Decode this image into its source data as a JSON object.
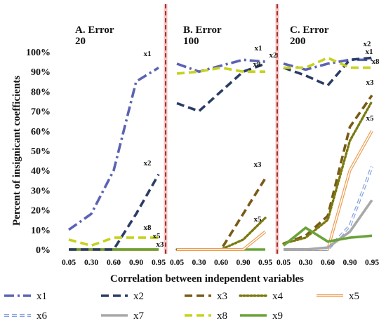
{
  "chart_data": {
    "type": "line",
    "ylabel": "Percent of insignicant coefficients",
    "xlabel": "Correlation between independent variables",
    "x_ticks": [
      "0.05",
      "0.30",
      "0.60",
      "0.90",
      "0.95"
    ],
    "y_ticks": [
      "0%",
      "10%",
      "20%",
      "30%",
      "40%",
      "50%",
      "60%",
      "70%",
      "80%",
      "90%",
      "100%"
    ],
    "ylim": [
      0,
      100
    ],
    "legend_position": "bottom",
    "series_styles": [
      {
        "name": "x1",
        "color": "#5b63b3",
        "dash": "dashdot"
      },
      {
        "name": "x2",
        "color": "#2a3c66",
        "dash": "dash"
      },
      {
        "name": "x3",
        "color": "#7a5a16",
        "dash": "dash"
      },
      {
        "name": "x4",
        "color": "#7a7a10",
        "dash": "dot"
      },
      {
        "name": "x5",
        "color": "#ec9d4f",
        "dash": "double"
      },
      {
        "name": "x6",
        "color": "#7f9fe0",
        "dash": "double-dash"
      },
      {
        "name": "x7",
        "color": "#a8a8a8",
        "dash": "solid"
      },
      {
        "name": "x8",
        "color": "#c6d21e",
        "dash": "dash"
      },
      {
        "name": "x9",
        "color": "#6aa33a",
        "dash": "solid"
      }
    ],
    "panels": [
      {
        "title_line1": "A. Error",
        "title_line2": "20",
        "series": [
          {
            "name": "x1",
            "values": [
              10,
              18,
              40,
              85,
              92
            ]
          },
          {
            "name": "x2",
            "values": [
              0,
              0,
              0,
              18,
              38
            ]
          },
          {
            "name": "x3",
            "values": [
              0,
              0,
              0,
              0,
              0
            ]
          },
          {
            "name": "x5",
            "values": [
              0,
              0,
              0,
              0,
              0
            ]
          },
          {
            "name": "x8",
            "values": [
              5,
              2,
              6,
              6,
              6
            ]
          },
          {
            "name": "x9",
            "values": [
              0,
              0,
              0,
              0,
              0
            ]
          }
        ],
        "labels": [
          "x1",
          "x2",
          "x8",
          "x5",
          "x3"
        ]
      },
      {
        "title_line1": "B. Error",
        "title_line2": "100",
        "series": [
          {
            "name": "x1",
            "values": [
              94,
              90,
              93,
              96,
              95
            ]
          },
          {
            "name": "x2",
            "values": [
              74,
              70,
              80,
              90,
              94
            ]
          },
          {
            "name": "x3",
            "values": [
              0,
              0,
              0,
              18,
              36
            ]
          },
          {
            "name": "x4",
            "values": [
              0,
              0,
              0,
              5,
              16
            ]
          },
          {
            "name": "x5",
            "values": [
              0,
              0,
              0,
              0,
              9
            ]
          },
          {
            "name": "x8",
            "values": [
              89,
              90,
              92,
              90,
              90
            ]
          },
          {
            "name": "x9",
            "values": [
              0,
              0,
              0,
              0,
              0
            ]
          }
        ],
        "labels": [
          "x1",
          "x2",
          "x8",
          "x3",
          "x5"
        ]
      },
      {
        "title_line1": "C. Error",
        "title_line2": "200",
        "series": [
          {
            "name": "x1",
            "values": [
              94,
              91,
              94,
              96,
              96
            ]
          },
          {
            "name": "x2",
            "values": [
              92,
              88,
              83,
              96,
              97
            ]
          },
          {
            "name": "x3",
            "values": [
              3,
              7,
              17,
              62,
              78
            ]
          },
          {
            "name": "x4",
            "values": [
              3,
              6,
              15,
              55,
              75
            ]
          },
          {
            "name": "x5",
            "values": [
              0,
              0,
              0,
              40,
              60
            ]
          },
          {
            "name": "x6",
            "values": [
              0,
              0,
              0,
              12,
              42
            ]
          },
          {
            "name": "x7",
            "values": [
              0,
              0,
              1,
              9,
              25
            ]
          },
          {
            "name": "x8",
            "values": [
              92,
              92,
              97,
              92,
              92
            ]
          },
          {
            "name": "x9",
            "values": [
              2,
              11,
              4,
              6,
              7
            ]
          }
        ],
        "labels": [
          "x2",
          "x1",
          "x8",
          "x3",
          "x5"
        ]
      }
    ]
  }
}
